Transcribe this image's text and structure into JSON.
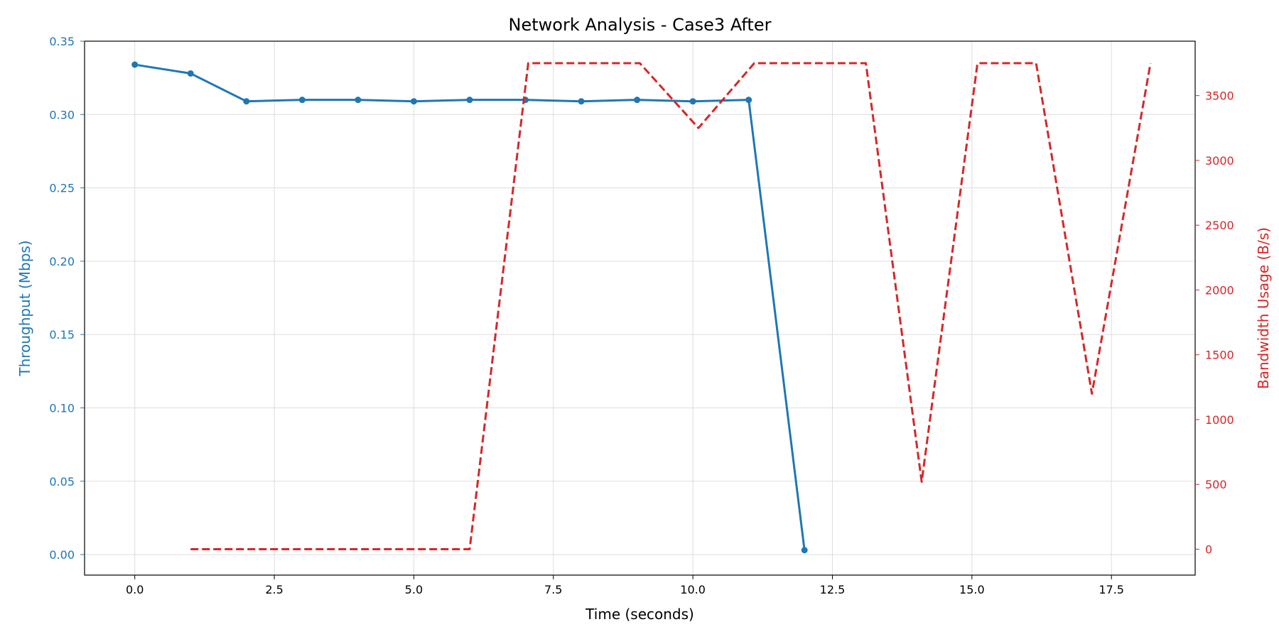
{
  "chart_data": {
    "type": "line",
    "title": "Network Analysis - Case3 After",
    "xlabel": "Time (seconds)",
    "ylabel_left": "Throughput (Mbps)",
    "ylabel_right": "Bandwidth Usage (B/s)",
    "xlim": [
      -0.9,
      19.0
    ],
    "ylim_left": [
      -0.014,
      0.35
    ],
    "ylim_right": [
      -200,
      3920
    ],
    "x_ticks": [
      0.0,
      2.5,
      5.0,
      7.5,
      10.0,
      12.5,
      15.0,
      17.5
    ],
    "x_tick_labels": [
      "0.0",
      "2.5",
      "5.0",
      "7.5",
      "10.0",
      "12.5",
      "15.0",
      "17.5"
    ],
    "y_left_ticks": [
      0.0,
      0.05,
      0.1,
      0.15,
      0.2,
      0.25,
      0.3,
      0.35
    ],
    "y_left_tick_labels": [
      "0.00",
      "0.05",
      "0.10",
      "0.15",
      "0.20",
      "0.25",
      "0.30",
      "0.35"
    ],
    "y_right_ticks": [
      0,
      500,
      1000,
      1500,
      2000,
      2500,
      3000,
      3500
    ],
    "y_right_tick_labels": [
      "0",
      "500",
      "1000",
      "1500",
      "2000",
      "2500",
      "3000",
      "3500"
    ],
    "grid": true,
    "series": [
      {
        "axis": "left",
        "style": "solid-markers",
        "color": "#1f77b4",
        "x": [
          0,
          1,
          2,
          3,
          4,
          5,
          6,
          7,
          8,
          9,
          10,
          11,
          12
        ],
        "values": [
          0.334,
          0.328,
          0.309,
          0.31,
          0.31,
          0.309,
          0.31,
          0.31,
          0.309,
          0.31,
          0.309,
          0.31,
          0.003
        ]
      },
      {
        "axis": "right",
        "style": "dashed",
        "color": "#d62728",
        "x": [
          1,
          2,
          3,
          4,
          5,
          6,
          7.05,
          8,
          9.05,
          10.1,
          11.1,
          12.1,
          13.1,
          14.1,
          15.1,
          16.15,
          17.15,
          18.2
        ],
        "values": [
          0,
          0,
          0,
          0,
          0,
          0,
          3750,
          3750,
          3750,
          3250,
          3750,
          3750,
          3750,
          520,
          3750,
          3750,
          1200,
          3750
        ]
      }
    ]
  }
}
